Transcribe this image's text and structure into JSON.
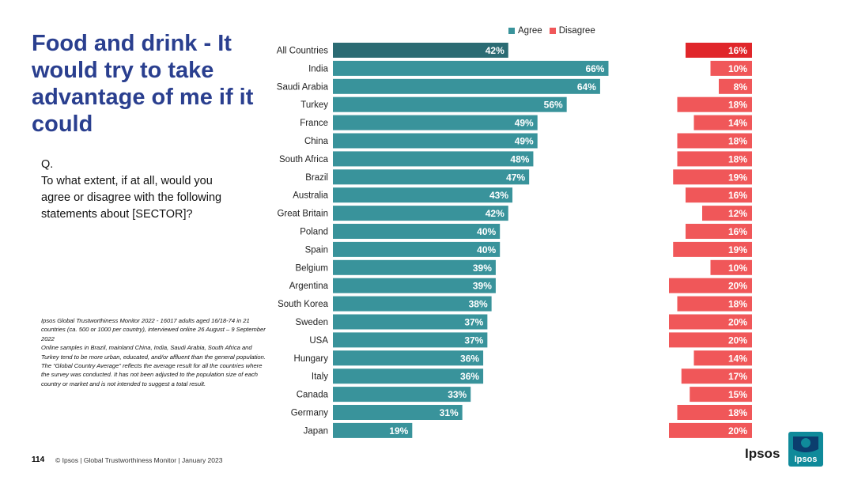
{
  "slide": {
    "title": "Food and drink - It would try to take advantage of me if it could",
    "question_prefix": "Q.",
    "question": "To what extent, if at all, would you agree or disagree with the following statements about [SECTOR]?",
    "footnotes": [
      "Ipsos Global Trustworthiness Monitor 2022 - 16017 adults aged 16/18-74 in 21 countries (ca. 500 or 1000 per country), interviewed online 26 August – 9 September 2022",
      "Online samples in Brazil, mainland China, India, Saudi Arabia, South Africa and Turkey tend to be more urban, educated, and/or affluent than the general population.",
      "The “Global Country Average” reflects the average result for all the countries where the survey was conducted. It has not been adjusted to the population size of each country or market and is not intended to suggest a total result."
    ],
    "page_number": "114",
    "footer": "© Ipsos | Global Trustworthiness Monitor | January 2023",
    "logo_word": "Ipsos",
    "logo_badge": "Ipsos"
  },
  "chart_data": {
    "type": "bar",
    "orientation": "horizontal",
    "categories": [
      "All Countries",
      "India",
      "Saudi Arabia",
      "Turkey",
      "France",
      "China",
      "South Africa",
      "Brazil",
      "Australia",
      "Great Britain",
      "Poland",
      "Spain",
      "Belgium",
      "Argentina",
      "South Korea",
      "Sweden",
      "USA",
      "Hungary",
      "Italy",
      "Canada",
      "Germany",
      "Japan"
    ],
    "series": [
      {
        "name": "Agree",
        "values": [
          42,
          66,
          64,
          56,
          49,
          49,
          48,
          47,
          43,
          42,
          40,
          40,
          39,
          39,
          38,
          37,
          37,
          36,
          36,
          33,
          31,
          19
        ]
      },
      {
        "name": "Disagree",
        "values": [
          16,
          10,
          8,
          18,
          14,
          18,
          18,
          19,
          16,
          12,
          16,
          19,
          10,
          20,
          18,
          20,
          20,
          14,
          17,
          15,
          18,
          20
        ]
      }
    ],
    "value_format": "%",
    "legend_position": "top",
    "colors": {
      "agree": "#39939b",
      "agree_highlight": "#2b6b73",
      "disagree": "#f05759",
      "disagree_highlight": "#e0262a"
    }
  }
}
